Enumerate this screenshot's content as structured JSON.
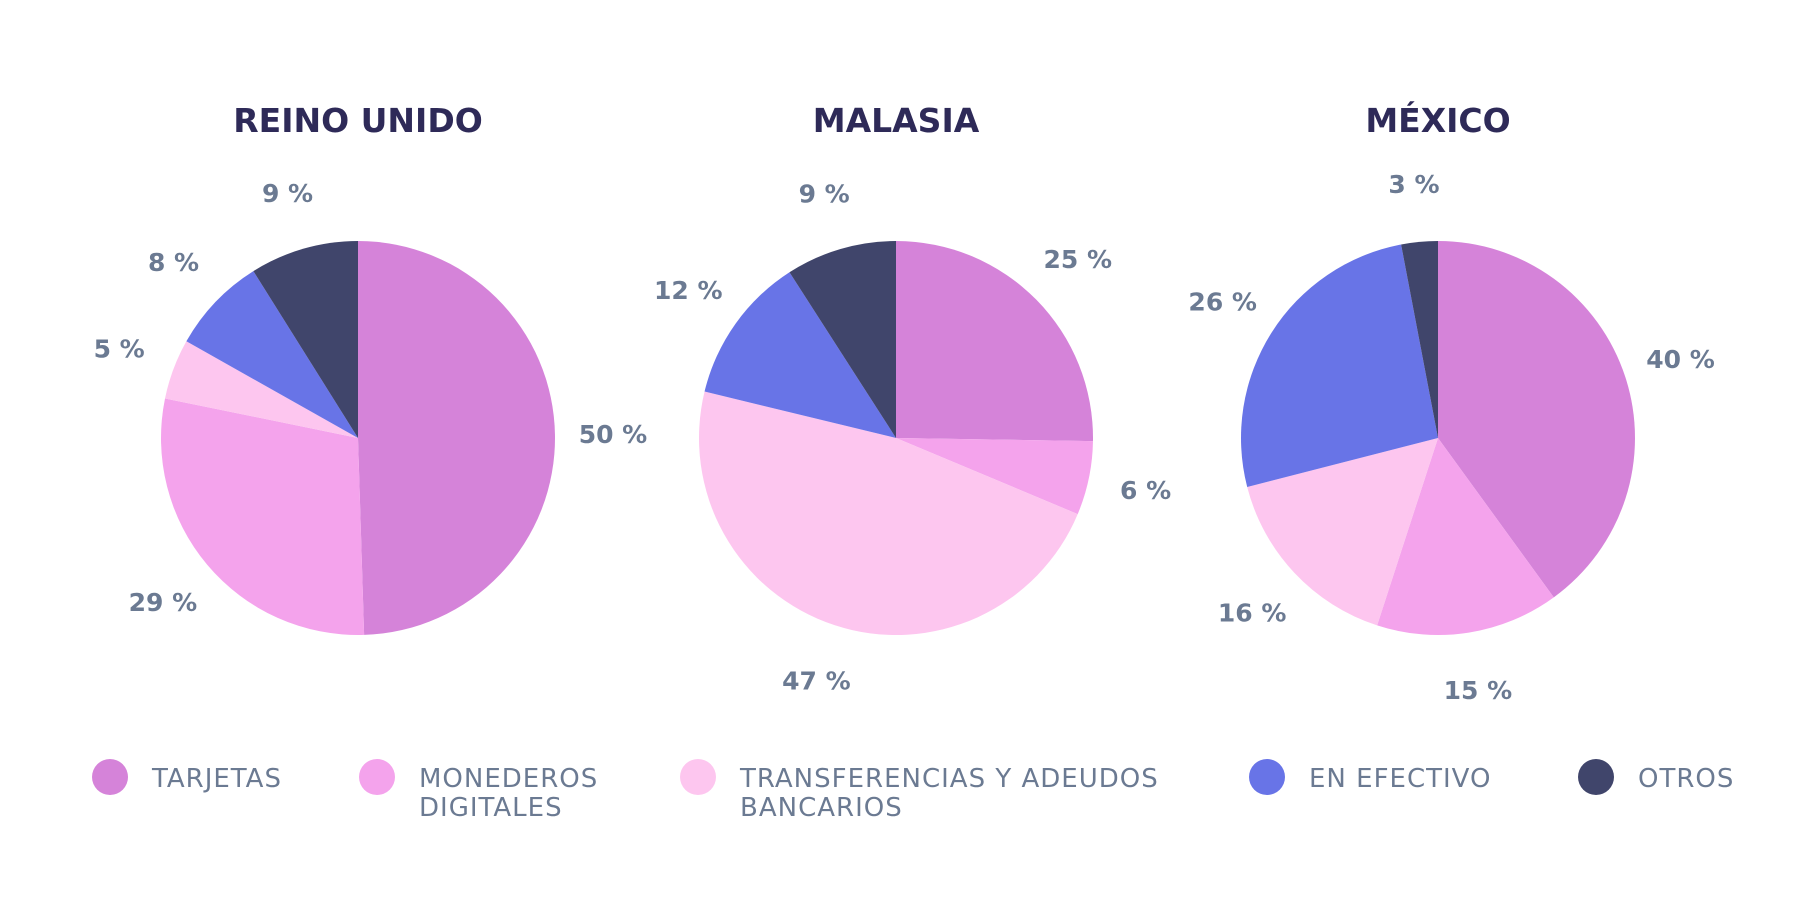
{
  "chart_data": {
    "type": "pie",
    "categories": [
      "TARJETAS",
      "MONEDEROS DIGITALES",
      "TRANSFERENCIAS Y ADEUDOS BANCARIOS",
      "EN EFECTIVO",
      "OTROS"
    ],
    "colors": [
      "#d583d9",
      "#f4a3ec",
      "#fdc6ef",
      "#6874e7",
      "#40456b"
    ],
    "legend": {
      "position": "bottom",
      "items": [
        {
          "lines": [
            "TARJETAS"
          ]
        },
        {
          "lines": [
            "MONEDEROS",
            "DIGITALES"
          ]
        },
        {
          "lines": [
            "TRANSFERENCIAS Y ADEUDOS",
            "BANCARIOS"
          ]
        },
        {
          "lines": [
            "EN EFECTIVO"
          ]
        },
        {
          "lines": [
            "OTROS"
          ]
        }
      ]
    },
    "pies": [
      {
        "title": "REINO UNIDO",
        "values": [
          50,
          29,
          5,
          8,
          9
        ],
        "labels": [
          "50 %",
          "29 %",
          "5 %",
          "8 %",
          "9 %"
        ]
      },
      {
        "title": "MALASIA",
        "values": [
          25,
          6,
          47,
          12,
          9
        ],
        "labels": [
          "25 %",
          "6 %",
          "47 %",
          "12 %",
          "9 %"
        ]
      },
      {
        "title": "MÉXICO",
        "values": [
          40,
          15,
          16,
          26,
          3
        ],
        "labels": [
          "40 %",
          "15 %",
          "16 %",
          "26 %",
          "3 %"
        ]
      }
    ]
  }
}
